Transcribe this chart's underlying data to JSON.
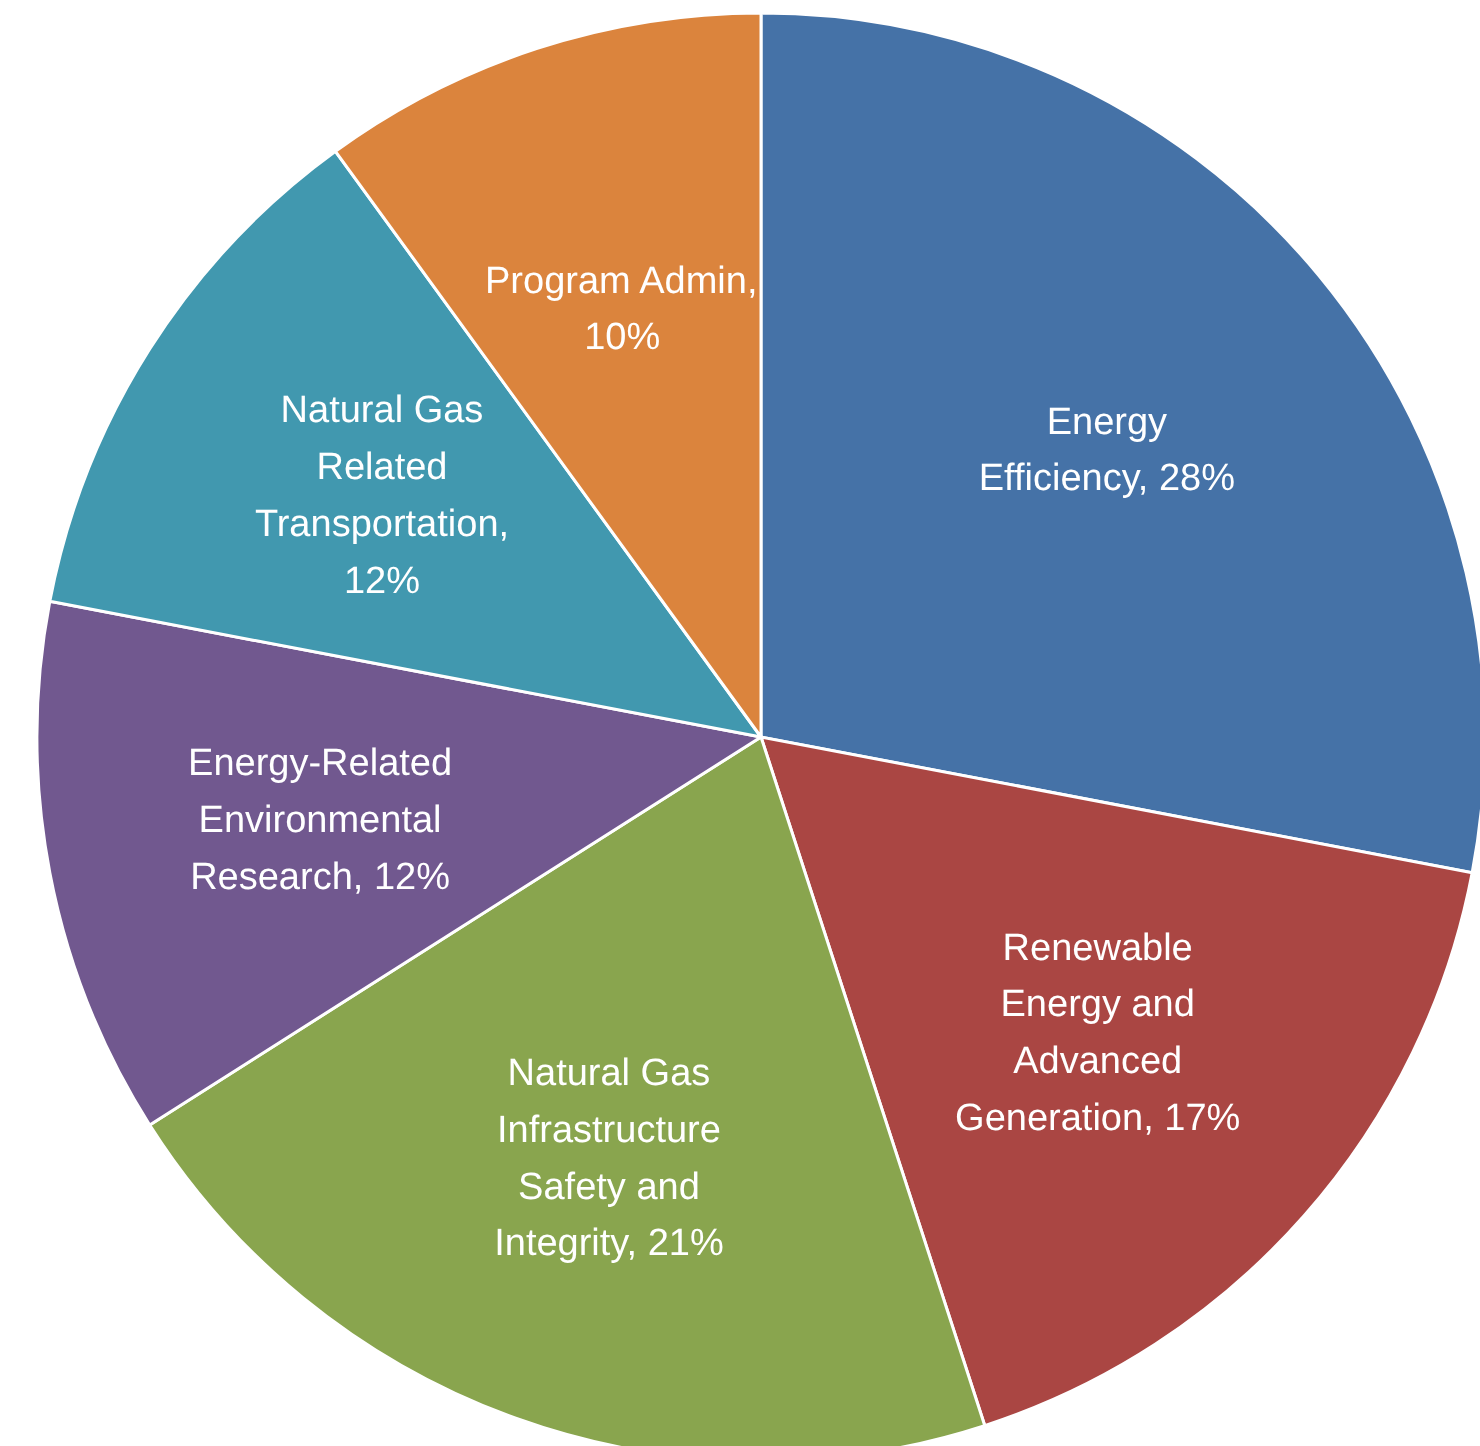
{
  "chart_data": {
    "type": "pie",
    "categories": [
      "Energy Efficiency, 28%",
      "Renewable Energy and Advanced Generation, 17%",
      "Natural Gas Infrastructure Safety and Integrity, 21%",
      "Energy-Related Environmental Research, 12%",
      "Natural Gas Related Transportation, 12%",
      "Program Admin, 10%"
    ],
    "values": [
      28,
      17,
      21,
      12,
      12,
      10
    ],
    "colors": [
      "#4572a7",
      "#aa4643",
      "#89a54e",
      "#71588f",
      "#4198af",
      "#db843d"
    ]
  }
}
